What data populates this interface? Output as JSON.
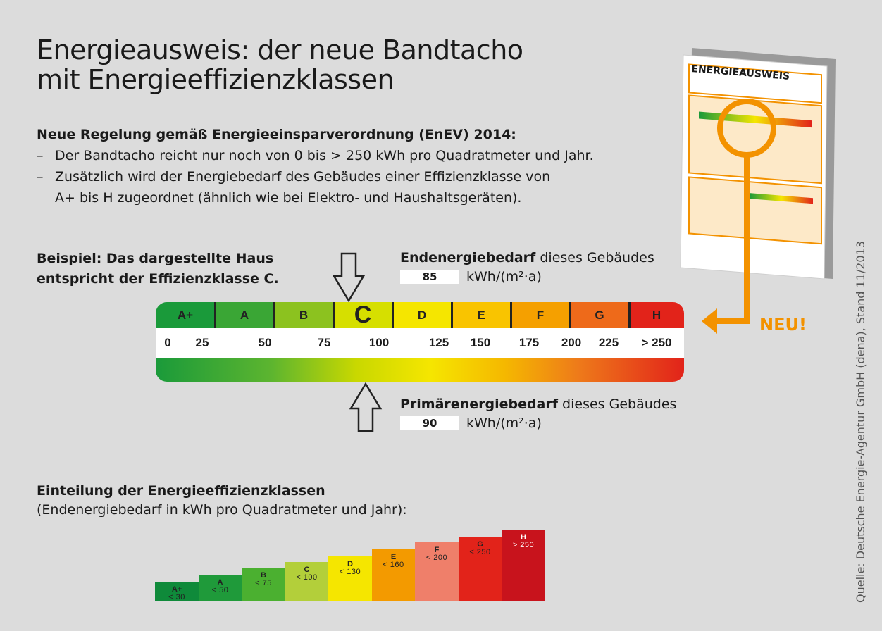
{
  "title": {
    "line1": "Energieausweis: der neue Bandtacho",
    "line2": "mit Energieeffizienzklassen"
  },
  "intro": {
    "heading": "Neue Regelung gemäß Energieeinsparverordnung (EnEV) 2014:",
    "bullet1": "Der Bandtacho reicht nur noch von 0 bis  > 250 kWh pro Quadratmeter und Jahr.",
    "bullet2_line1": "Zusätzlich wird der Energiebedarf des Gebäudes einer Effizienzklasse von",
    "bullet2_line2": "A+ bis H zugeordnet (ähnlich wie bei Elektro- und Haushaltsgeräten).",
    "dash": "–"
  },
  "example": {
    "line1": "Beispiel: Das dargestellte Haus",
    "line2": "entspricht der Effizienzklasse C."
  },
  "end_energy": {
    "label_bold": "Endenergiebedarf",
    "label_rest": " dieses Gebäudes",
    "value": "85",
    "unit": "kWh/(m²·a)"
  },
  "primary_energy": {
    "label_bold": "Primärenergiebedarf",
    "label_rest": " dieses Gebäudes",
    "value": "90",
    "unit": "kWh/(m²·a)"
  },
  "tacho": {
    "classes": [
      {
        "label": "A+",
        "color": "#1a9a3a"
      },
      {
        "label": "A",
        "color": "#3aa635"
      },
      {
        "label": "B",
        "color": "#8cc21f"
      },
      {
        "label": "C",
        "color": "#d6df00",
        "selected": true
      },
      {
        "label": "D",
        "color": "#f5e600"
      },
      {
        "label": "E",
        "color": "#f9c400"
      },
      {
        "label": "F",
        "color": "#f5a000"
      },
      {
        "label": "G",
        "color": "#ee6a1a"
      },
      {
        "label": "H",
        "color": "#e2231a"
      }
    ],
    "ticks": [
      "0",
      "25",
      "50",
      "75",
      "100",
      "125",
      "150",
      "175",
      "200",
      "225",
      "> 250"
    ],
    "selected_class": "C"
  },
  "callout": {
    "label": "NEU!",
    "color": "#f39200"
  },
  "document": {
    "title": "ENERGIEAUSWEIS"
  },
  "classes_section": {
    "heading": "Einteilung der Energieeffizienzklassen",
    "subheading": "(Endenergiebedarf in kWh pro Quadratmeter  und Jahr):"
  },
  "chart_data": {
    "type": "bar",
    "categories": [
      "A+",
      "A",
      "B",
      "C",
      "D",
      "E",
      "F",
      "G",
      "H"
    ],
    "values": [
      30,
      50,
      75,
      100,
      130,
      160,
      200,
      250,
      250
    ],
    "limits": [
      "< 30",
      "< 50",
      "< 75",
      "< 100",
      "< 130",
      "< 160",
      "< 200",
      "< 250",
      "> 250"
    ],
    "colors": [
      "#0f8a3a",
      "#1f9a3a",
      "#4bb030",
      "#b3cf3a",
      "#f5e600",
      "#f39a00",
      "#ef7f6a",
      "#e2231a",
      "#c8131c"
    ]
  },
  "source": "Quelle: Deutsche Energie-Agentur GmbH (dena), Stand 11/2013"
}
